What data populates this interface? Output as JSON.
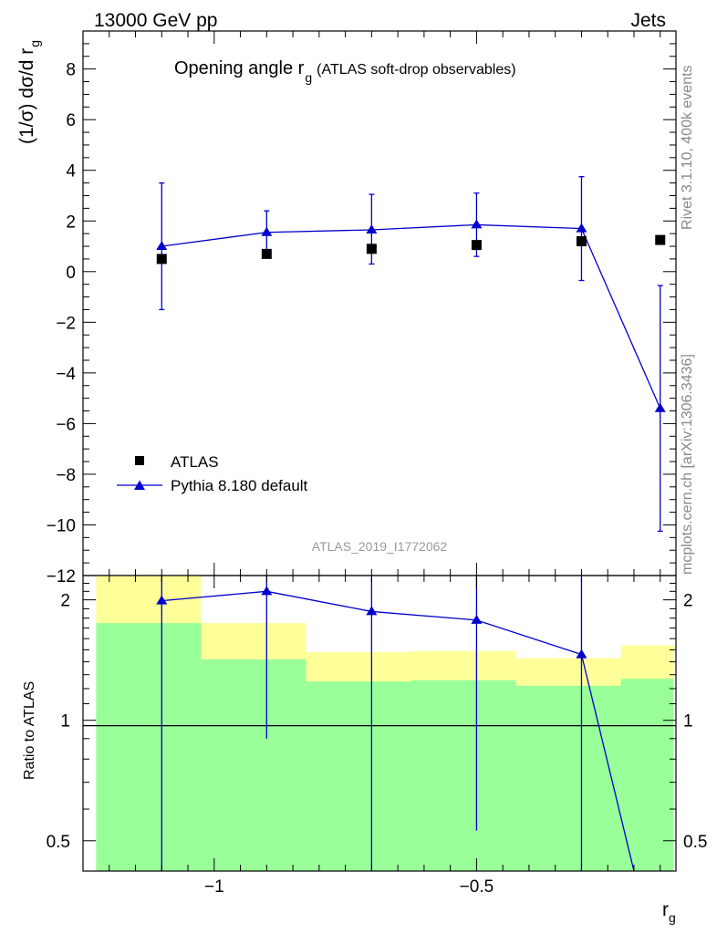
{
  "header": {
    "left": "13000 GeV pp",
    "right": "Jets"
  },
  "side_labels": {
    "rivet": "Rivet 3.1.10,  400k events",
    "mcplots": "mcplots.cern.ch [arXiv:1306.3436]"
  },
  "analysis_id": "ATLAS_2019_I1772062",
  "colors": {
    "data": "#000000",
    "mc": "#0000cc",
    "band_inner": "#99ff99",
    "band_outer": "#ffff99"
  },
  "chart_data": [
    {
      "type": "scatter",
      "role": "main",
      "title_main": "Opening angle r",
      "title_sub": "g",
      "title_extra": "(ATLAS soft-drop observables)",
      "ylabel": "(1/σ) dσ/d r",
      "ylabel_sub": "g",
      "xlim": [
        -1.25,
        -0.12
      ],
      "ylim": [
        -12,
        9.5
      ],
      "yticks": [
        8,
        6,
        4,
        2,
        0,
        -2,
        -4,
        -6,
        -8,
        -10,
        -12
      ],
      "ytick_labels": [
        "8",
        "6",
        "4",
        "2",
        "0",
        "−2",
        "−4",
        "−6",
        "−8",
        "−10",
        "−12"
      ],
      "legend_position": "bottom-left",
      "series": [
        {
          "name": "ATLAS",
          "marker": "square",
          "x": [
            -1.1,
            -0.9,
            -0.7,
            -0.5,
            -0.3,
            -0.15
          ],
          "y": [
            0.5,
            0.7,
            0.9,
            1.05,
            1.2,
            1.25
          ]
        },
        {
          "name": "Pythia 8.180 default",
          "marker": "triangle",
          "x": [
            -1.1,
            -0.9,
            -0.7,
            -0.5,
            -0.3,
            -0.15
          ],
          "y": [
            1.0,
            1.55,
            1.65,
            1.85,
            1.7,
            -5.4
          ],
          "yerr_low": [
            2.5,
            0.8,
            1.35,
            1.25,
            2.05,
            4.85
          ],
          "yerr_high": [
            2.5,
            0.85,
            1.4,
            1.25,
            2.05,
            4.85
          ]
        }
      ]
    },
    {
      "type": "scatter",
      "role": "ratio",
      "ylabel": "Ratio to ATLAS",
      "xlabel": "r",
      "xlabel_sub": "g",
      "xlim": [
        -1.25,
        -0.12
      ],
      "ylim": [
        0.42,
        2.3
      ],
      "yticks": [
        2,
        1,
        0.5
      ],
      "ytick_labels": [
        "2",
        "1",
        "0.5"
      ],
      "xticks": [
        -1,
        -0.5
      ],
      "xtick_labels": [
        "−1",
        "−0.5"
      ],
      "bands": {
        "edges": [
          -1.225,
          -1.025,
          -0.825,
          -0.625,
          -0.425,
          -0.225,
          -0.125
        ],
        "inner_low": [
          0.42,
          0.42,
          0.42,
          0.42,
          0.42,
          0.42
        ],
        "inner_high": [
          1.75,
          1.42,
          1.25,
          1.26,
          1.22,
          1.27
        ],
        "outer_low": [
          0.42,
          0.68,
          0.57,
          0.55,
          0.65,
          0.5
        ],
        "outer_high": [
          2.3,
          1.75,
          1.48,
          1.49,
          1.43,
          1.54
        ]
      },
      "series": [
        {
          "name": "Pythia 8.180 default",
          "x": [
            -1.1,
            -0.9,
            -0.7,
            -0.5,
            -0.3,
            -0.2
          ],
          "y": [
            1.99,
            2.1,
            1.87,
            1.78,
            1.46,
            0.42
          ],
          "markers": [
            true,
            true,
            true,
            true,
            true,
            false
          ],
          "err_low": [
            1.6,
            1.2,
            1.5,
            1.25,
            1.1,
            0
          ],
          "err_high": [
            1.6,
            1.2,
            1.5,
            1.25,
            1.1,
            0
          ]
        }
      ]
    }
  ]
}
